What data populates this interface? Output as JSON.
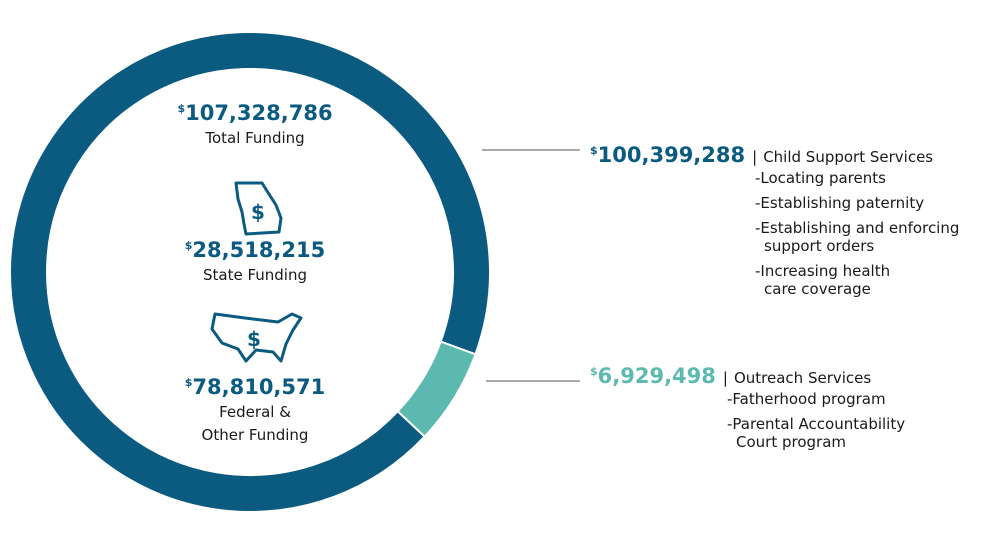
{
  "chart_data": {
    "type": "donut",
    "currency": "$",
    "separator": "|",
    "categories": [
      "Child Support Services",
      "Outreach Services"
    ],
    "values": [
      100399288,
      6929498
    ],
    "value_labels": [
      "100,399,288",
      "6,929,498"
    ],
    "colors": [
      "#0b5a80",
      "#5cb9af"
    ],
    "details": [
      [
        [
          "-Locating parents"
        ],
        [
          "-Establishing paternity"
        ],
        [
          "-Establishing and enforcing",
          "support orders"
        ],
        [
          "-Increasing health",
          "care coverage"
        ]
      ],
      [
        [
          "-Fatherhood program"
        ],
        [
          "-Parental Accountability",
          "Court program"
        ]
      ]
    ],
    "summary": [
      {
        "amount": "107,328,786",
        "label": [
          "Total Funding"
        ]
      },
      {
        "amount": "28,518,215",
        "label": [
          "State Funding"
        ]
      },
      {
        "amount": "78,810,571",
        "label": [
          "Federal &",
          "Other Funding"
        ]
      }
    ]
  }
}
